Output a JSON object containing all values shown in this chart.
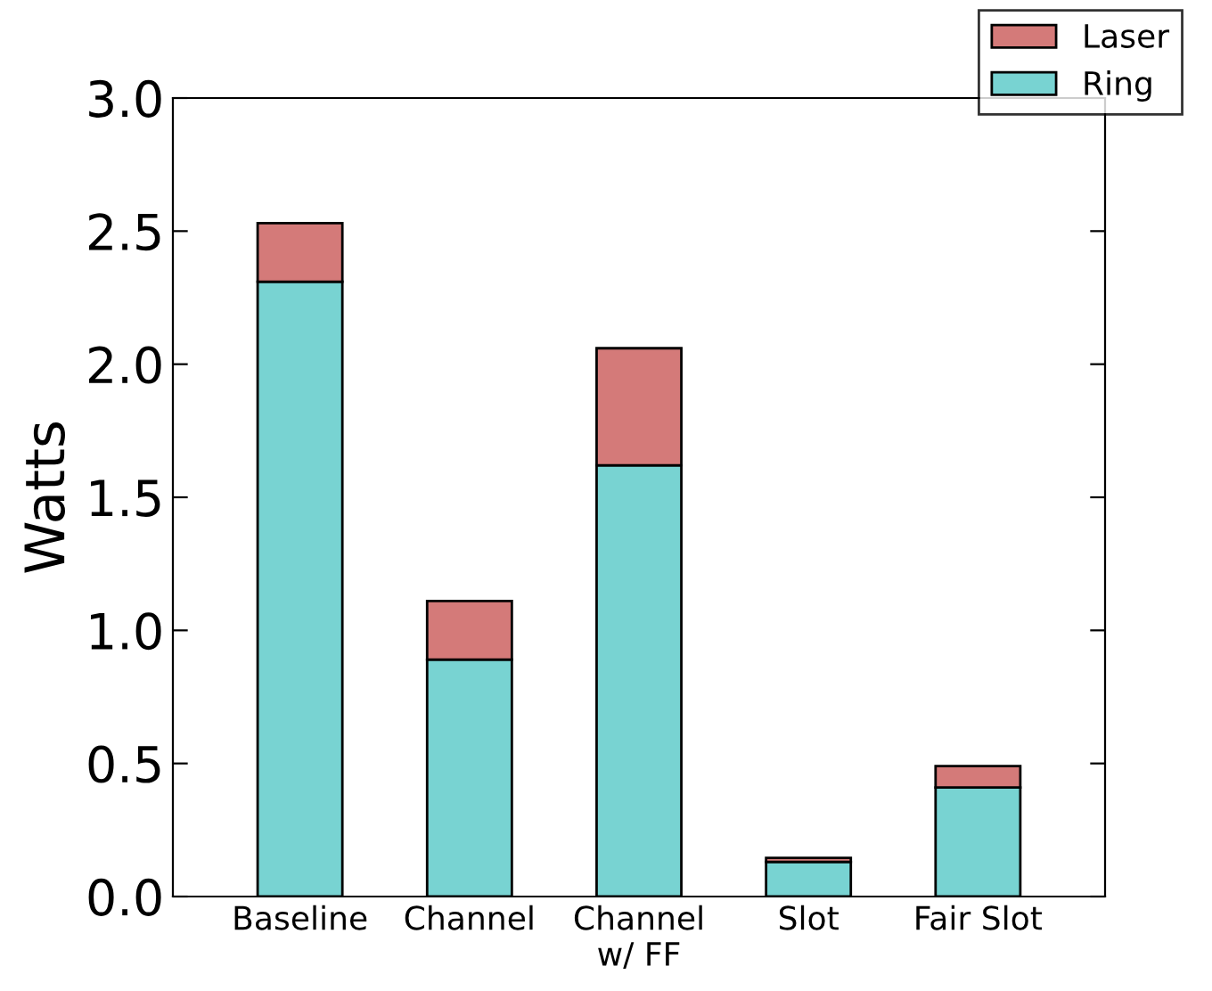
{
  "chart_data": {
    "type": "bar",
    "stacked": true,
    "ylabel": "Watts",
    "categories": [
      "Baseline",
      "Channel",
      "Channel\nw/ FF",
      "Slot",
      "Fair Slot"
    ],
    "series": [
      {
        "name": "Ring",
        "color": "#78d3d2",
        "values": [
          2.31,
          0.89,
          1.62,
          0.13,
          0.41
        ]
      },
      {
        "name": "Laser",
        "color": "#d47a79",
        "values": [
          0.22,
          0.22,
          0.44,
          0.015,
          0.08
        ]
      }
    ],
    "ylim": [
      0,
      3.0
    ],
    "yticks": [
      {
        "value": 0,
        "label": "0.0"
      },
      {
        "value": 0.5,
        "label": "0.5"
      },
      {
        "value": 1.0,
        "label": "1.0"
      },
      {
        "value": 1.5,
        "label": "1.5"
      },
      {
        "value": 2.0,
        "label": "2.0"
      },
      {
        "value": 2.5,
        "label": "2.5"
      },
      {
        "value": 3.0,
        "label": "3.0"
      }
    ],
    "grid": false,
    "legend": "top right"
  }
}
